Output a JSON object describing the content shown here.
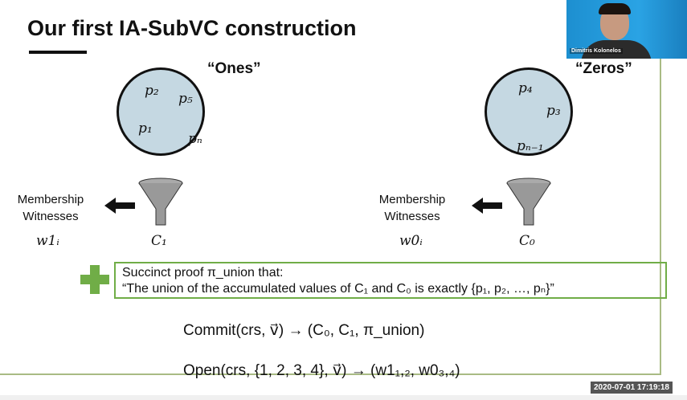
{
  "slide": {
    "title": "Our first IA-SubVC construction",
    "ones_label": "“Ones”",
    "zeros_label": "“Zeros”",
    "ones_elements": [
      "p₂",
      "p₅",
      "p₁",
      "pₙ"
    ],
    "zeros_elements": [
      "p₄",
      "p₃",
      "pₙ₋₁"
    ],
    "left_witness_label": [
      "Membership",
      "Witnesses"
    ],
    "right_witness_label": [
      "Membership",
      "Witnesses"
    ],
    "left_witness_var": "w1ᵢ",
    "right_witness_var": "w0ᵢ",
    "left_commitment": "C₁",
    "right_commitment": "C₀",
    "proof_line1": "Succinct proof π_union that:",
    "proof_line2": "“The union of the accumulated values of C₁ and C₀ is exactly {p₁, p₂, …, pₙ}”",
    "commit_eq": "Commit(crs, v⃗) → (C₀, C₁, π_union)",
    "open_eq": "Open(crs, {1, 2, 3, 4}, v⃗) → (w1₁,₂, w0₃,₄)"
  },
  "webcam": {
    "participant_name": "Dimitris Kolonelos"
  },
  "recording": {
    "timestamp": "2020-07-01 17:19:18"
  },
  "colors": {
    "accent_green": "#70ad47",
    "circle_fill": "#c5d8e2"
  }
}
